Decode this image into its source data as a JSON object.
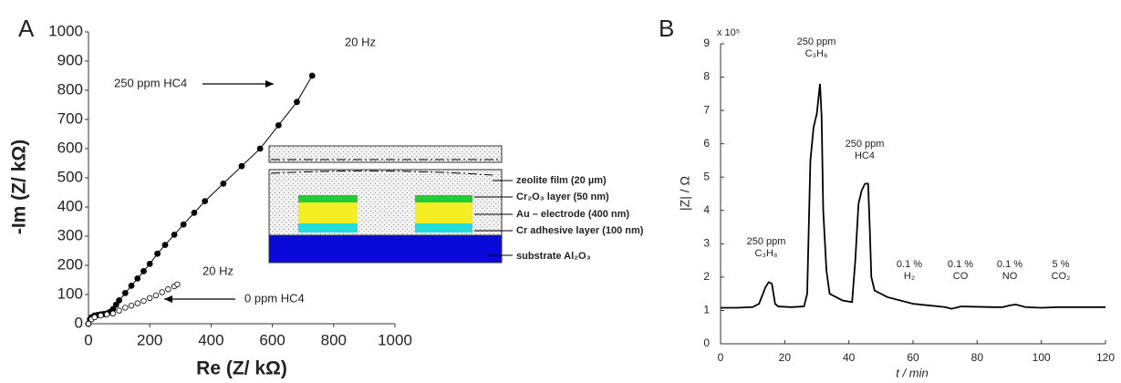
{
  "chart_data": [
    {
      "type": "scatter",
      "panel": "A",
      "xlabel": "Re (Z/ kΩ)",
      "ylabel": "-Im (Z/ kΩ)",
      "xlim": [
        0,
        1000
      ],
      "xticks": [
        0,
        200,
        400,
        600,
        800,
        1000
      ],
      "ylim": [
        0,
        1000
      ],
      "yticks": [
        0,
        100,
        200,
        300,
        400,
        500,
        600,
        700,
        800,
        900,
        1000
      ],
      "annotations": [
        "20 Hz",
        "20 Hz"
      ],
      "series": [
        {
          "name": "250 ppm HC4",
          "marker": "filled",
          "color": "#000000",
          "x": [
            0,
            5,
            10,
            20,
            30,
            40,
            50,
            60,
            70,
            80,
            90,
            100,
            120,
            140,
            160,
            180,
            200,
            225,
            250,
            280,
            310,
            345,
            380,
            440,
            500,
            560,
            620,
            680,
            730
          ],
          "values": [
            0,
            15,
            22,
            28,
            30,
            32,
            33,
            35,
            40,
            50,
            65,
            80,
            105,
            130,
            155,
            180,
            205,
            240,
            270,
            305,
            340,
            380,
            420,
            480,
            540,
            600,
            680,
            760,
            850
          ]
        },
        {
          "name": "0 ppm HC4",
          "marker": "open",
          "color": "#000000",
          "x": [
            0,
            10,
            20,
            40,
            60,
            80,
            100,
            120,
            140,
            160,
            180,
            200,
            220,
            240,
            260,
            280,
            290
          ],
          "values": [
            0,
            15,
            22,
            28,
            32,
            35,
            45,
            55,
            62,
            70,
            78,
            88,
            97,
            108,
            118,
            128,
            135
          ]
        }
      ]
    },
    {
      "type": "line",
      "panel": "B",
      "xlabel": "t / min",
      "ylabel": "|Z| / Ω",
      "multiplier": "x 10⁵",
      "xlim": [
        0,
        120
      ],
      "xticks": [
        0,
        20,
        40,
        60,
        80,
        100,
        120
      ],
      "ylim": [
        0,
        9
      ],
      "yticks": [
        0,
        1,
        2,
        3,
        4,
        5,
        6,
        7,
        8,
        9
      ],
      "annotations": [
        [
          "250 ppm",
          "C₃H₈"
        ],
        [
          "250 ppm",
          "C₃H₆"
        ],
        [
          "250 ppm",
          "HC4"
        ],
        [
          "0.1 %",
          "H₂"
        ],
        [
          "0.1 %",
          "CO"
        ],
        [
          "0.1 %",
          "NO"
        ],
        [
          "5 %",
          "CO₂"
        ]
      ],
      "color": "#000000",
      "x": [
        0,
        5,
        10,
        12,
        14,
        15,
        16,
        17,
        18,
        22,
        26,
        27,
        28,
        29,
        30,
        31,
        31.5,
        32,
        33,
        34,
        38,
        41,
        42,
        43,
        44,
        45,
        46,
        46.5,
        47,
        48,
        52,
        60,
        70,
        72,
        75,
        85,
        88,
        90,
        92,
        95,
        100,
        105,
        110,
        120
      ],
      "values": [
        1.08,
        1.08,
        1.1,
        1.2,
        1.7,
        1.85,
        1.8,
        1.2,
        1.12,
        1.1,
        1.12,
        1.5,
        5.5,
        6.5,
        6.9,
        7.8,
        6.8,
        4,
        2.2,
        1.5,
        1.3,
        1.25,
        2.5,
        4.2,
        4.6,
        4.8,
        4.8,
        3.5,
        2,
        1.6,
        1.4,
        1.2,
        1.1,
        1.05,
        1.12,
        1.1,
        1.1,
        1.15,
        1.18,
        1.1,
        1.08,
        1.1,
        1.1,
        1.1
      ]
    }
  ],
  "inset": {
    "labels": [
      "zeolite film (20 µm)",
      "Cr₂O₃ layer (50 nm)",
      "Au – electrode (400 nm)",
      "Cr adhesive layer (100 nm)",
      "substrate Al₂O₃"
    ]
  }
}
